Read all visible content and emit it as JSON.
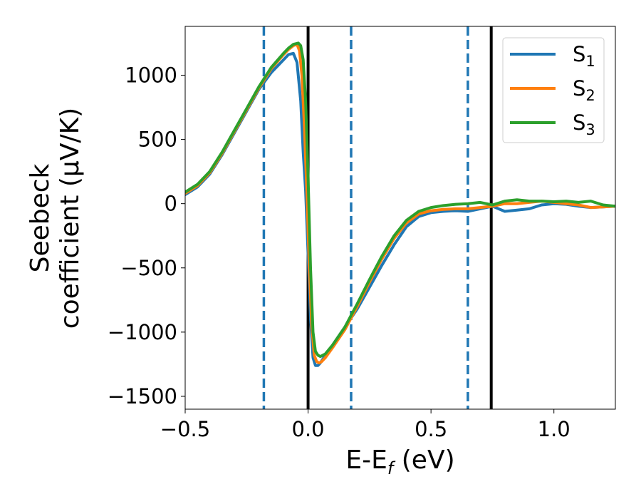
{
  "chart_data": {
    "type": "line",
    "xlabel": "E-E_f (eV)",
    "xlabel_parts": {
      "main": "E-E",
      "sub": "f",
      "rest": " (eV)"
    },
    "ylabel_lines": [
      "Seebeck",
      "coefficient  (μV/K)"
    ],
    "xlim": [
      -0.5,
      1.25
    ],
    "ylim": [
      -1600,
      1380
    ],
    "xticks": [
      -0.5,
      0.0,
      0.5,
      1.0
    ],
    "xtick_labels": [
      "−0.5",
      "0.0",
      "0.5",
      "1.0"
    ],
    "yticks": [
      -1500,
      -1000,
      -500,
      0,
      500,
      1000
    ],
    "ytick_labels": [
      "−1500",
      "−1000",
      "−500",
      "0",
      "500",
      "1000"
    ],
    "grid": false,
    "legend_position": "top-right",
    "vertical_lines": [
      {
        "x": -0.18,
        "style": "dashed",
        "color": "#1f77b4"
      },
      {
        "x": 0.175,
        "style": "dashed",
        "color": "#1f77b4"
      },
      {
        "x": 0.65,
        "style": "dashed",
        "color": "#1f77b4"
      },
      {
        "x": 0.0,
        "style": "solid",
        "color": "#000000"
      },
      {
        "x": 0.745,
        "style": "solid",
        "color": "#000000"
      }
    ],
    "series": [
      {
        "name": "S1",
        "name_main": "S",
        "name_sub": "1",
        "color": "#1f77b4",
        "x": [
          -0.5,
          -0.45,
          -0.4,
          -0.35,
          -0.3,
          -0.25,
          -0.2,
          -0.15,
          -0.1,
          -0.08,
          -0.06,
          -0.045,
          -0.03,
          -0.02,
          -0.01,
          0.0,
          0.01,
          0.02,
          0.03,
          0.04,
          0.05,
          0.07,
          0.1,
          0.15,
          0.2,
          0.25,
          0.3,
          0.35,
          0.4,
          0.45,
          0.5,
          0.55,
          0.6,
          0.65,
          0.7,
          0.75,
          0.8,
          0.85,
          0.9,
          0.95,
          1.0,
          1.05,
          1.1,
          1.15,
          1.2,
          1.25
        ],
        "y": [
          70,
          130,
          230,
          380,
          550,
          720,
          890,
          1020,
          1120,
          1160,
          1170,
          1100,
          800,
          400,
          100,
          -400,
          -900,
          -1200,
          -1260,
          -1260,
          -1240,
          -1180,
          -1100,
          -960,
          -820,
          -650,
          -480,
          -320,
          -180,
          -100,
          -70,
          -60,
          -55,
          -60,
          -40,
          -20,
          -60,
          -50,
          -40,
          -10,
          0,
          -5,
          -20,
          -30,
          -25,
          -20
        ]
      },
      {
        "name": "S2",
        "name_main": "S",
        "name_sub": "2",
        "color": "#ff7f0e",
        "x": [
          -0.5,
          -0.45,
          -0.4,
          -0.35,
          -0.3,
          -0.25,
          -0.2,
          -0.15,
          -0.1,
          -0.08,
          -0.06,
          -0.045,
          -0.035,
          -0.025,
          -0.015,
          -0.005,
          0.005,
          0.015,
          0.025,
          0.035,
          0.045,
          0.055,
          0.07,
          0.1,
          0.15,
          0.2,
          0.25,
          0.3,
          0.35,
          0.4,
          0.45,
          0.5,
          0.55,
          0.6,
          0.65,
          0.7,
          0.75,
          0.8,
          0.85,
          0.9,
          0.95,
          1.0,
          1.05,
          1.1,
          1.15,
          1.2,
          1.25
        ],
        "y": [
          80,
          140,
          240,
          390,
          560,
          730,
          900,
          1050,
          1160,
          1200,
          1230,
          1240,
          1190,
          1000,
          600,
          100,
          -500,
          -950,
          -1180,
          -1230,
          -1240,
          -1230,
          -1200,
          -1120,
          -980,
          -800,
          -610,
          -430,
          -270,
          -150,
          -80,
          -55,
          -45,
          -40,
          -40,
          -30,
          -20,
          0,
          0,
          10,
          20,
          10,
          0,
          -10,
          -30,
          -25,
          -20
        ]
      },
      {
        "name": "S3",
        "name_main": "S",
        "name_sub": "3",
        "color": "#2ca02c",
        "x": [
          -0.5,
          -0.45,
          -0.4,
          -0.35,
          -0.3,
          -0.25,
          -0.2,
          -0.15,
          -0.1,
          -0.08,
          -0.06,
          -0.04,
          -0.03,
          -0.02,
          -0.01,
          0.0,
          0.01,
          0.02,
          0.03,
          0.04,
          0.05,
          0.06,
          0.07,
          0.1,
          0.15,
          0.2,
          0.25,
          0.3,
          0.35,
          0.4,
          0.45,
          0.5,
          0.55,
          0.6,
          0.65,
          0.7,
          0.75,
          0.8,
          0.85,
          0.9,
          0.95,
          1.0,
          1.05,
          1.1,
          1.15,
          1.2,
          1.25
        ],
        "y": [
          90,
          150,
          250,
          400,
          570,
          740,
          910,
          1060,
          1170,
          1210,
          1240,
          1250,
          1230,
          1120,
          800,
          200,
          -500,
          -1000,
          -1150,
          -1180,
          -1190,
          -1180,
          -1170,
          -1100,
          -960,
          -780,
          -590,
          -410,
          -250,
          -130,
          -60,
          -30,
          -15,
          -5,
          0,
          10,
          -10,
          20,
          30,
          20,
          20,
          15,
          20,
          10,
          20,
          -10,
          -20
        ]
      }
    ]
  }
}
